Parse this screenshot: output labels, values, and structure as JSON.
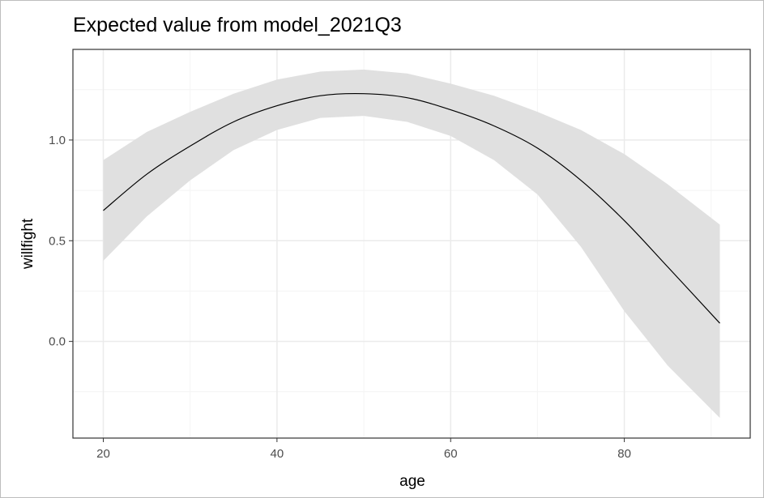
{
  "chart_data": {
    "type": "line",
    "title": "Expected value from model_2021Q3",
    "xlabel": "age",
    "ylabel": "willfight",
    "xlim": [
      16.5,
      94.5
    ],
    "ylim": [
      -0.48,
      1.45
    ],
    "x_ticks": [
      20,
      40,
      60,
      80
    ],
    "x_tick_labels": [
      "20",
      "40",
      "60",
      "80"
    ],
    "y_ticks": [
      0.0,
      0.5,
      1.0
    ],
    "y_tick_labels": [
      "0.0",
      "0.5",
      "1.0"
    ],
    "x_minor_ticks": [
      30,
      50,
      70,
      90
    ],
    "y_minor_ticks": [
      -0.25,
      0.25,
      0.75,
      1.25
    ],
    "grid": true,
    "legend": "none",
    "colors": {
      "line": "#000000",
      "ribbon": "#e0e0e0",
      "grid_major": "#ebebeb",
      "grid_minor": "#f4f4f4",
      "panel_border": "#333333"
    },
    "series": [
      {
        "x": [
          20,
          25,
          30,
          35,
          40,
          45,
          50,
          55,
          60,
          65,
          70,
          75,
          80,
          85,
          91
        ],
        "y": [
          0.65,
          0.83,
          0.97,
          1.09,
          1.17,
          1.22,
          1.23,
          1.21,
          1.15,
          1.07,
          0.96,
          0.8,
          0.6,
          0.37,
          0.09
        ],
        "lower": [
          0.4,
          0.62,
          0.8,
          0.95,
          1.05,
          1.11,
          1.12,
          1.09,
          1.02,
          0.9,
          0.73,
          0.47,
          0.15,
          -0.12,
          -0.38
        ],
        "upper": [
          0.9,
          1.04,
          1.14,
          1.23,
          1.3,
          1.34,
          1.35,
          1.33,
          1.28,
          1.22,
          1.14,
          1.05,
          0.93,
          0.78,
          0.58
        ]
      }
    ]
  }
}
